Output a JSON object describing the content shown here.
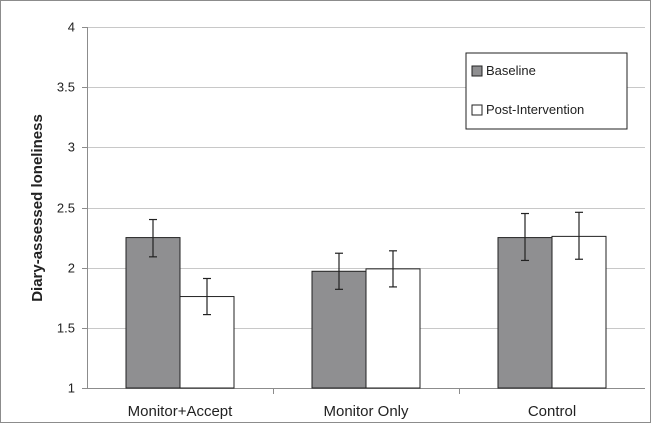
{
  "chart_data": {
    "type": "bar",
    "title": "",
    "xlabel": "",
    "ylabel": "Diary-assessed loneliness",
    "ylim": [
      1,
      4
    ],
    "yticks": [
      1,
      1.5,
      2,
      2.5,
      3,
      3.5,
      4
    ],
    "ytick_labels": [
      "1",
      "1.5",
      "2",
      "2.5",
      "3",
      "3.5",
      "4"
    ],
    "categories": [
      "Monitor+Accept",
      "Monitor Only",
      "Control"
    ],
    "grid": true,
    "legend_position": "top-right",
    "series": [
      {
        "name": "Baseline",
        "color": "#8f8f91",
        "values": [
          2.25,
          1.97,
          2.25
        ],
        "error_low": [
          2.09,
          1.82,
          2.06
        ],
        "error_high": [
          2.4,
          2.12,
          2.45
        ]
      },
      {
        "name": "Post-Intervention",
        "color": "#ffffff",
        "values": [
          1.76,
          1.99,
          2.26
        ],
        "error_low": [
          1.61,
          1.84,
          2.07
        ],
        "error_high": [
          1.91,
          2.14,
          2.46
        ]
      }
    ]
  }
}
